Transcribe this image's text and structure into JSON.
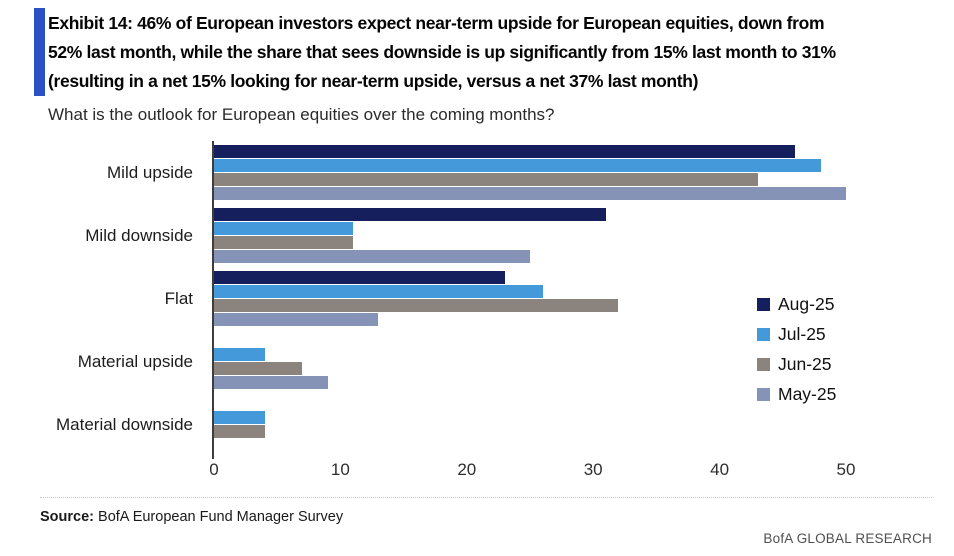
{
  "header": {
    "title_lines": [
      "Exhibit 14: 46% of European investors expect near-term upside for European equities, down from",
      "52% last month, while the share that sees downside is up significantly from 15% last month to 31%",
      "(resulting in a net 15% looking for near-term upside, versus a net 37% last month)"
    ],
    "subtitle": "What is the outlook for European equities over the coming months?"
  },
  "chart_data": {
    "type": "bar",
    "orientation": "horizontal",
    "title": "What is the outlook for European equities over the coming months?",
    "categories": [
      "Mild upside",
      "Mild downside",
      "Flat",
      "Material upside",
      "Material downside"
    ],
    "series": [
      {
        "name": "Aug-25",
        "color": "#151F5E",
        "values": [
          46,
          31,
          23,
          0,
          0
        ]
      },
      {
        "name": "Jul-25",
        "color": "#4499DB",
        "values": [
          48,
          11,
          26,
          4,
          4
        ]
      },
      {
        "name": "Jun-25",
        "color": "#8B837D",
        "values": [
          43,
          11,
          32,
          7,
          4
        ]
      },
      {
        "name": "May-25",
        "color": "#8593B7",
        "values": [
          50,
          25,
          13,
          9,
          0
        ]
      }
    ],
    "xlabel": "",
    "ylabel": "",
    "xlim": [
      0,
      50
    ],
    "x_ticks": [
      0,
      10,
      20,
      30,
      40,
      50
    ],
    "unit": "%",
    "grid": false,
    "legend_position": "right"
  },
  "colors": {
    "accent_blue": "#2B51C5",
    "axis_line": "#3d3d3d"
  },
  "footer": {
    "source_label": "Source:",
    "source_text": " BofA European Fund Manager Survey",
    "brand": "BofA GLOBAL RESEARCH"
  }
}
